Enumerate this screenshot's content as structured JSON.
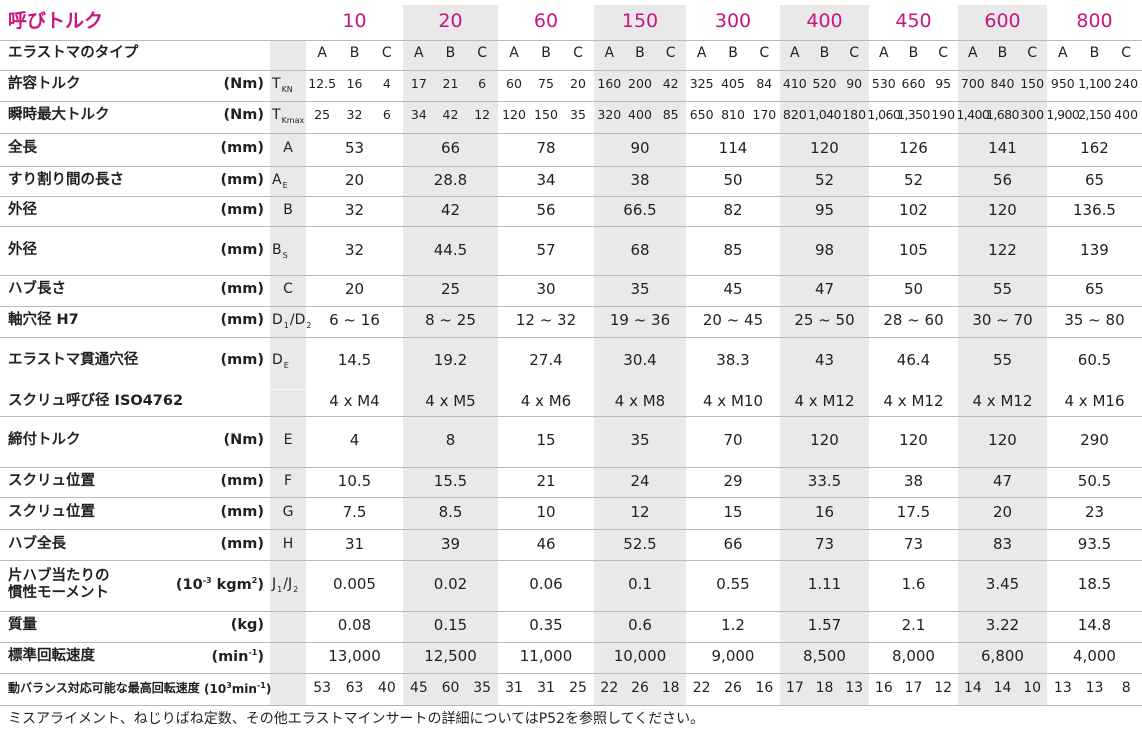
{
  "header": {
    "label": "呼びトルク",
    "sizes": [
      "10",
      "20",
      "60",
      "150",
      "300",
      "400",
      "450",
      "600",
      "800"
    ]
  },
  "elastomer": {
    "label": "エラストマのタイプ",
    "types": [
      "A",
      "B",
      "C"
    ]
  },
  "rows_abc": [
    {
      "label": "許容トルク",
      "unit": "(Nm)",
      "sym": "T",
      "sub": "KN",
      "vals": [
        [
          "12.5",
          "16",
          "4"
        ],
        [
          "17",
          "21",
          "6"
        ],
        [
          "60",
          "75",
          "20"
        ],
        [
          "160",
          "200",
          "42"
        ],
        [
          "325",
          "405",
          "84"
        ],
        [
          "410",
          "520",
          "90"
        ],
        [
          "530",
          "660",
          "95"
        ],
        [
          "700",
          "840",
          "150"
        ],
        [
          "950",
          "1,100",
          "240"
        ]
      ]
    },
    {
      "label": "瞬時最大トルク",
      "unit": "(Nm)",
      "sym": "T",
      "sub": "Kmax",
      "vals": [
        [
          "25",
          "32",
          "6"
        ],
        [
          "34",
          "42",
          "12"
        ],
        [
          "120",
          "150",
          "35"
        ],
        [
          "320",
          "400",
          "85"
        ],
        [
          "650",
          "810",
          "170"
        ],
        [
          "820",
          "1,040",
          "180"
        ],
        [
          "1,060",
          "1,350",
          "190"
        ],
        [
          "1,400",
          "1,680",
          "300"
        ],
        [
          "1,900",
          "2,150",
          "400"
        ]
      ]
    }
  ],
  "rows_single": [
    {
      "label": "全長",
      "unit": "(mm)",
      "sym": "A",
      "vals": [
        "53",
        "66",
        "78",
        "90",
        "114",
        "120",
        "126",
        "141",
        "162"
      ]
    },
    {
      "label": "すり割り間の長さ",
      "unit": "(mm)",
      "sym": "A",
      "sub": "E",
      "vals": [
        "20",
        "28.8",
        "34",
        "38",
        "50",
        "52",
        "52",
        "56",
        "65"
      ]
    },
    {
      "label": "外径",
      "unit": "(mm)",
      "sym": "B",
      "vals": [
        "32",
        "42",
        "56",
        "66.5",
        "82",
        "95",
        "102",
        "120",
        "136.5"
      ]
    },
    {
      "label": "外径",
      "unit": "",
      "sym": "B",
      "sub": "S",
      "vals": [
        "32",
        "44.5",
        "57",
        "68",
        "85",
        "98",
        "105",
        "122",
        "139"
      ]
    },
    {
      "label": "ハブ長さ",
      "unit": "(mm)",
      "sym": "C",
      "vals": [
        "20",
        "25",
        "30",
        "35",
        "45",
        "47",
        "50",
        "55",
        "65"
      ]
    },
    {
      "label": "軸穴径 H7",
      "unit": "(mm)",
      "sym": "D",
      "sub": "1",
      "sym2": "/D",
      "sub2": "2",
      "vals": [
        "6 ~ 16",
        "8 ~ 25",
        "12 ~ 32",
        "19 ~ 36",
        "20 ~ 45",
        "25 ~ 50",
        "28 ~ 60",
        "30 ~ 70",
        "35 ~ 80"
      ]
    },
    {
      "label": "エラストマ貫通穴径",
      "unit": "(mm)",
      "sym": "D",
      "sub": "E",
      "vals": [
        "14.5",
        "19.2",
        "27.4",
        "30.4",
        "38.3",
        "43",
        "46.4",
        "55",
        "60.5"
      ]
    },
    {
      "label": "スクリュ呼び径 ISO4762",
      "unit": "",
      "sym": "",
      "vals": [
        "4 x M4",
        "4 x M5",
        "4 x M6",
        "4 x M8",
        "4 x M10",
        "4 x M12",
        "4 x M12",
        "4 x M12",
        "4 x M16"
      ]
    },
    {
      "label": "締付トルク",
      "unit": "(Nm)",
      "sym": "E",
      "vals": [
        "4",
        "8",
        "15",
        "35",
        "70",
        "120",
        "120",
        "120",
        "290"
      ]
    },
    {
      "label": "スクリュ位置",
      "unit": "(mm)",
      "sym": "F",
      "vals": [
        "10.5",
        "15.5",
        "21",
        "24",
        "29",
        "33.5",
        "38",
        "47",
        "50.5"
      ]
    },
    {
      "label": "スクリュ位置",
      "unit": "(mm)",
      "sym": "G",
      "vals": [
        "7.5",
        "8.5",
        "10",
        "12",
        "15",
        "16",
        "17.5",
        "20",
        "23"
      ]
    },
    {
      "label": "ハブ全長",
      "unit": "(mm)",
      "sym": "H",
      "vals": [
        "31",
        "39",
        "46",
        "52.5",
        "66",
        "73",
        "73",
        "83",
        "93.5"
      ]
    },
    {
      "label": "片ハブ当たりの",
      "label2": "慣性モーメント",
      "unit": "(10",
      "unit_sup": "-3",
      "unit_rest": " kgm",
      "unit_sup2": "2",
      "unit_end": ")",
      "sym": "J",
      "sub": "1",
      "sym2": "/J",
      "sub2": "2",
      "vals": [
        "0.005",
        "0.02",
        "0.06",
        "0.1",
        "0.55",
        "1.11",
        "1.6",
        "3.45",
        "18.5"
      ]
    },
    {
      "label": "質量",
      "unit": "(kg)",
      "sym": "",
      "vals": [
        "0.08",
        "0.15",
        "0.35",
        "0.6",
        "1.2",
        "1.57",
        "2.1",
        "3.22",
        "14.8"
      ]
    },
    {
      "label": "標準回転速度",
      "unit": "(min",
      "unit_sup": "-1",
      "unit_end": ")",
      "sym": "",
      "vals": [
        "13,000",
        "12,500",
        "11,000",
        "10,000",
        "9,000",
        "8,500",
        "8,000",
        "6,800",
        "4,000"
      ]
    }
  ],
  "dyn_row": {
    "label": "動バランス対応可能な最高回転速度",
    "unit": "(10",
    "unit_sup": "3",
    "unit_rest": "min",
    "unit_sup2": "-1",
    "unit_end": ")",
    "vals": [
      [
        "53",
        "63",
        "40"
      ],
      [
        "45",
        "60",
        "35"
      ],
      [
        "31",
        "31",
        "25"
      ],
      [
        "22",
        "26",
        "18"
      ],
      [
        "22",
        "26",
        "16"
      ],
      [
        "17",
        "18",
        "13"
      ],
      [
        "16",
        "17",
        "12"
      ],
      [
        "14",
        "14",
        "10"
      ],
      [
        "13",
        "13",
        "8"
      ]
    ]
  },
  "note": "ミスアライメント、ねじりばね定数、その他エラストマインサートの詳細についてはP52を参照してください。",
  "colors": {
    "accent": "#c9157f",
    "shade": "#e9e9ea",
    "rule": "#b9b9bb"
  }
}
